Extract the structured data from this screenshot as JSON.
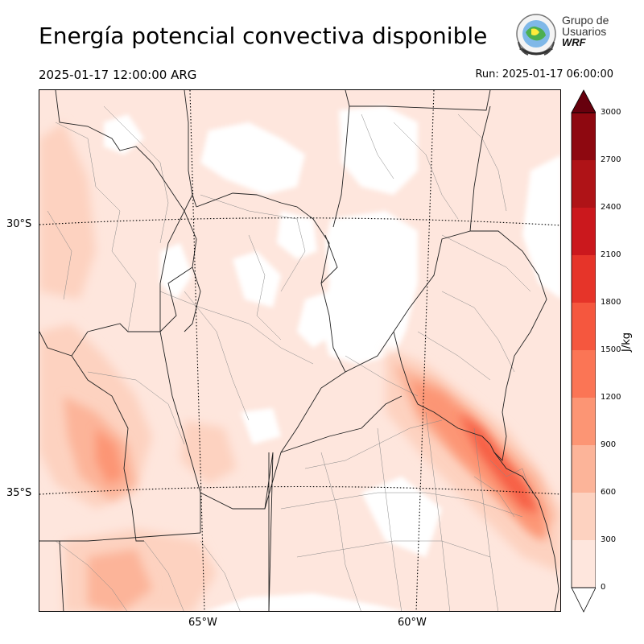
{
  "title": "Energía potencial convectiva disponible",
  "valid_time": "2025-01-17 12:00:00 ARG",
  "run_time": "Run: 2025-01-17 06:00:00",
  "logo": {
    "line1": "Grupo de",
    "line2": "Usuarios",
    "line3": "WRF",
    "icon": "wrf-users-group-logo"
  },
  "map": {
    "lat_labels": [
      "30°S",
      "35°S"
    ],
    "lon_labels": [
      "65°W",
      "60°W"
    ]
  },
  "colorbar": {
    "unit": "J/kg",
    "ticks": [
      "0",
      "300",
      "600",
      "900",
      "1200",
      "1500",
      "1800",
      "2100",
      "2400",
      "2700",
      "3000"
    ],
    "colors": [
      "#fee6dd",
      "#fdd2c0",
      "#fcb499",
      "#fc9574",
      "#fb7555",
      "#f5573e",
      "#e63429",
      "#cb181d",
      "#af1317",
      "#8e0810"
    ],
    "over_color": "#67000d",
    "under_color": "#ffffff"
  }
}
